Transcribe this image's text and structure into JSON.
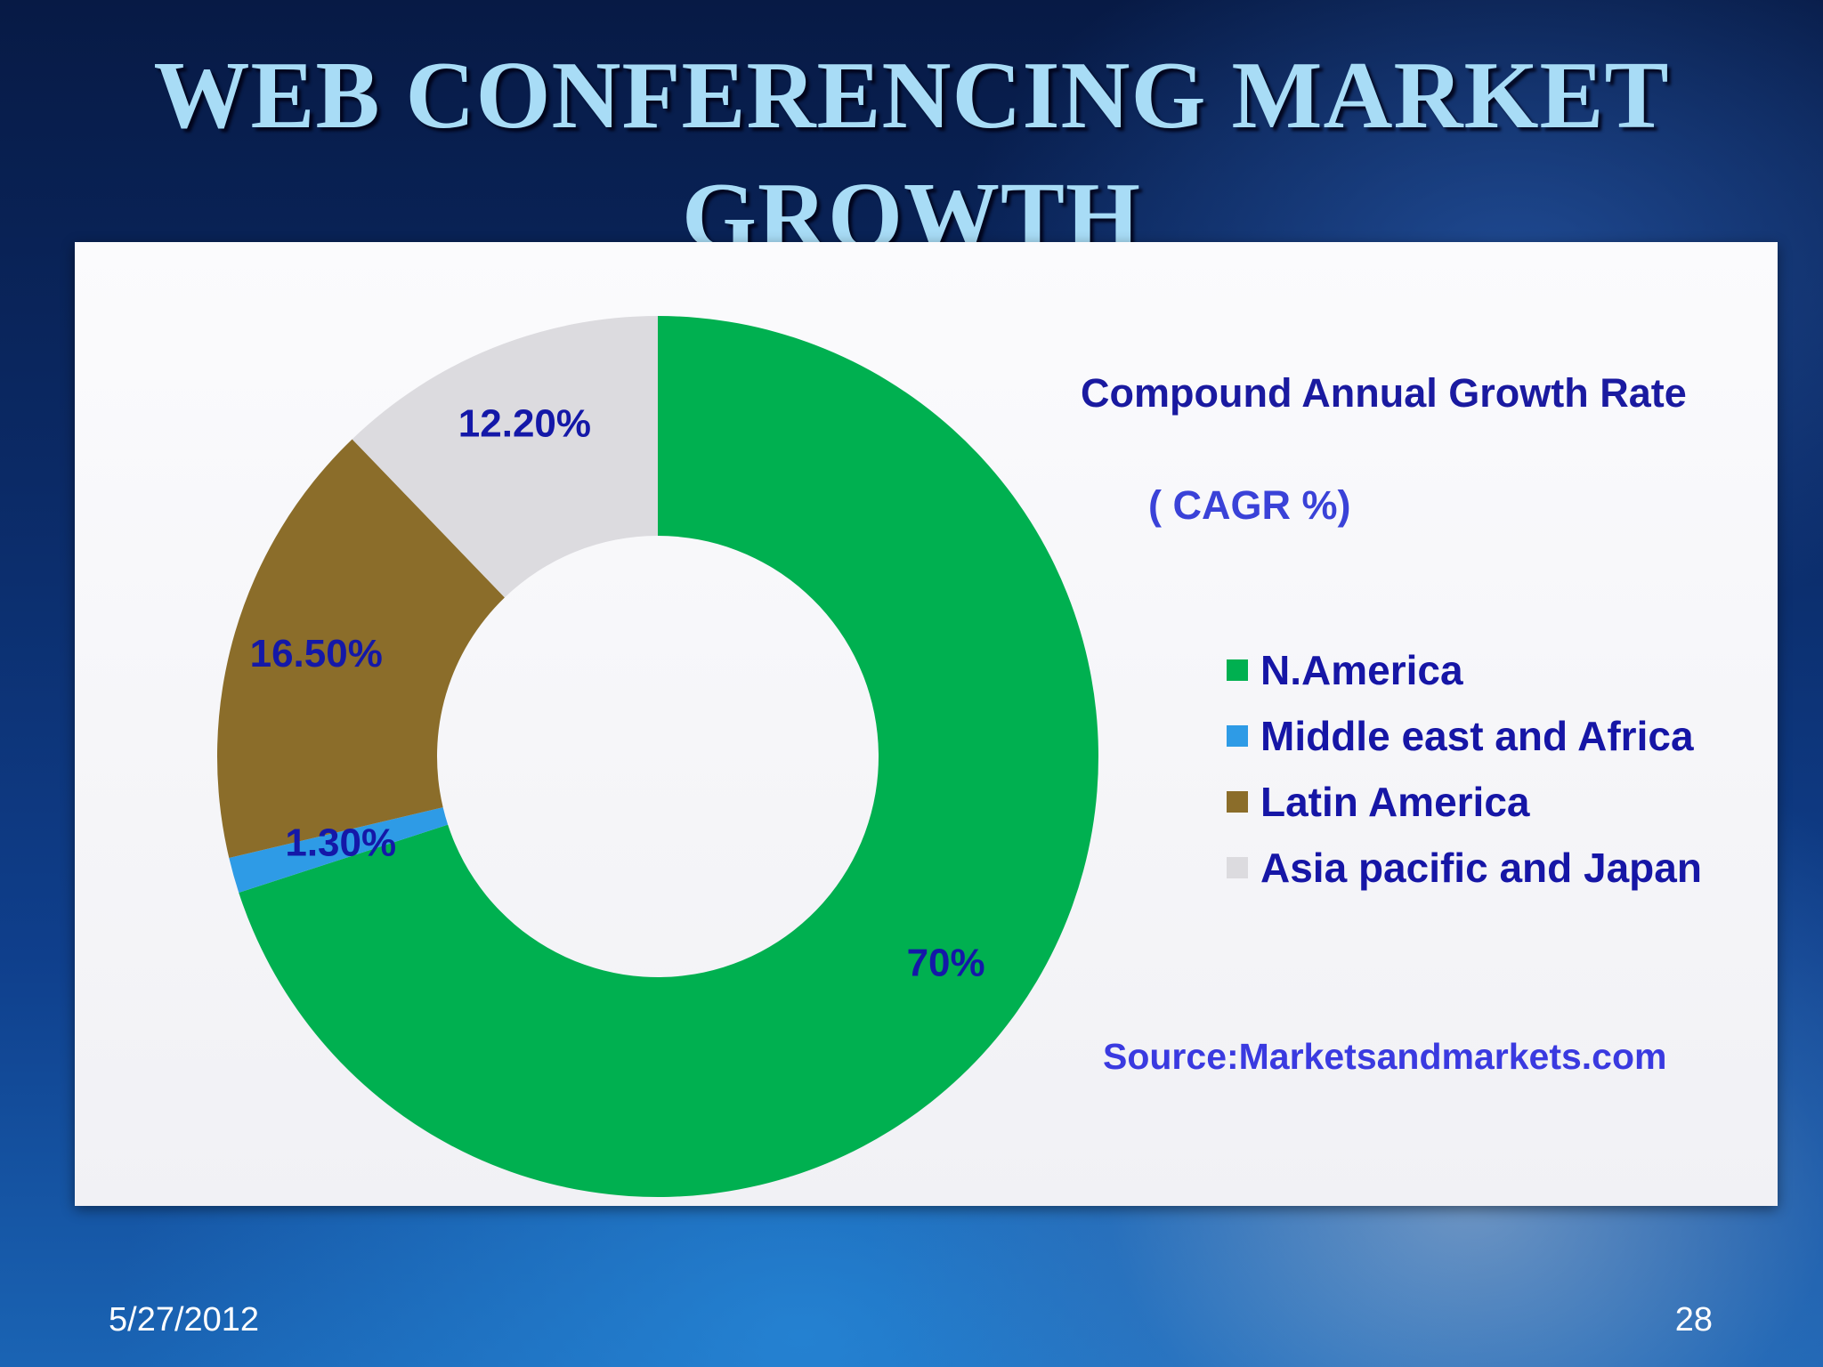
{
  "slide": {
    "title_line1": "WEB CONFERENCING  MARKET",
    "title_line2": "GROWTH",
    "footer_date": "5/27/2012",
    "page_number": "28"
  },
  "chart_data": {
    "type": "pie",
    "donut": true,
    "title": "Compound Annual Growth Rate",
    "subtitle": "( CAGR  %)",
    "legend_position": "right",
    "source": "Source:Marketsandmarkets.com",
    "slices": [
      {
        "name": "N.America",
        "value": 70,
        "label": "70%",
        "color": "#00b050"
      },
      {
        "name": "Middle east and Africa",
        "value": 1.3,
        "label": "1.30%",
        "color": "#2e9be6"
      },
      {
        "name": "Latin America",
        "value": 16.5,
        "label": "16.50%",
        "color": "#8b6d2a"
      },
      {
        "name": "Asia pacific and Japan",
        "value": 12.2,
        "label": "12.20%",
        "color": "#dcdbdf"
      }
    ]
  }
}
